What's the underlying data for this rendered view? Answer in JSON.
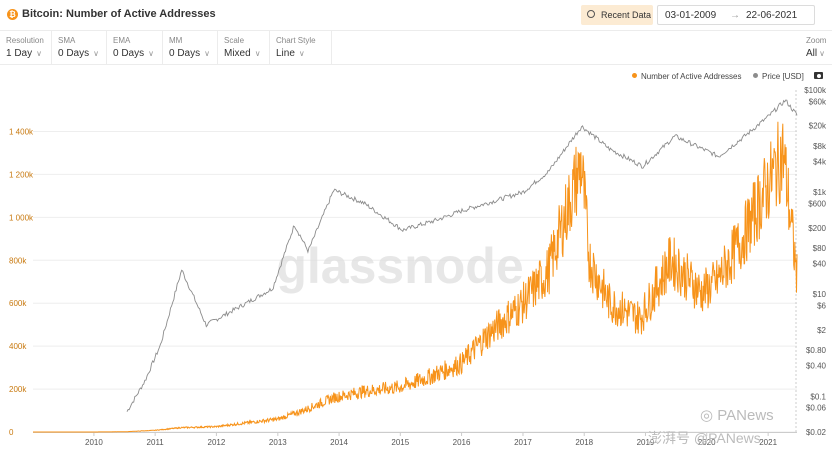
{
  "header": {
    "title": "Bitcoin: Number of Active Addresses",
    "recent_button": "Recent Data",
    "date_start": "03-01-2009",
    "date_arrow": "→",
    "date_end": "22-06-2021"
  },
  "controls": [
    {
      "label": "Resolution",
      "value": "1 Day"
    },
    {
      "label": "SMA",
      "value": "0 Days"
    },
    {
      "label": "EMA",
      "value": "0 Days"
    },
    {
      "label": "MM",
      "value": "0 Days"
    },
    {
      "label": "Scale",
      "value": "Mixed"
    },
    {
      "label": "Chart Style",
      "value": "Line"
    }
  ],
  "zoom": {
    "label": "Zoom",
    "value": "All"
  },
  "watermark": {
    "logo": "glassnode",
    "source": "PANews",
    "source_prefix": "澎湃号"
  },
  "colors": {
    "addresses": "#f7931a",
    "price": "#8c8c8c",
    "axis_left": "#c8790f",
    "grid": "#eeeeee"
  },
  "icons": {
    "title": "bitcoin-icon",
    "recent": "clock-icon",
    "camera": "camera-icon"
  },
  "chart_data": {
    "type": "line",
    "grid": true,
    "legend_position": "top-right",
    "x_ticks": [
      "2010",
      "2011",
      "2012",
      "2013",
      "2014",
      "2015",
      "2016",
      "2017",
      "2018",
      "2019",
      "2020",
      "2021"
    ],
    "y_left": {
      "scale": "linear",
      "range": [
        0,
        1500000
      ],
      "ticks": [
        "0",
        "200k",
        "400k",
        "600k",
        "800k",
        "1 000k",
        "1 200k",
        "1 400k"
      ]
    },
    "y_right": {
      "scale": "log",
      "range": [
        0.02,
        100000
      ],
      "ticks": [
        "$0.02",
        "$0.06",
        "$0.1",
        "$0.40",
        "$0.80",
        "$2",
        "$6",
        "$10",
        "$40",
        "$80",
        "$200",
        "$600",
        "$1k",
        "$4k",
        "$8k",
        "$20k",
        "$60k",
        "$100k"
      ]
    },
    "series": [
      {
        "name": "Number of Active Addresses",
        "axis": "left",
        "points": [
          [
            "2009-01-03",
            0
          ],
          [
            "2010-01-01",
            100
          ],
          [
            "2010-07-01",
            1000
          ],
          [
            "2011-01-01",
            8000
          ],
          [
            "2011-06-01",
            20000
          ],
          [
            "2012-01-01",
            25000
          ],
          [
            "2012-06-01",
            40000
          ],
          [
            "2013-01-01",
            60000
          ],
          [
            "2013-06-01",
            100000
          ],
          [
            "2013-12-01",
            160000
          ],
          [
            "2014-06-01",
            190000
          ],
          [
            "2015-01-01",
            210000
          ],
          [
            "2015-06-01",
            250000
          ],
          [
            "2016-01-01",
            320000
          ],
          [
            "2016-06-01",
            450000
          ],
          [
            "2017-01-01",
            600000
          ],
          [
            "2017-06-01",
            750000
          ],
          [
            "2017-12-15",
            1250000
          ],
          [
            "2018-02-01",
            800000
          ],
          [
            "2018-06-01",
            600000
          ],
          [
            "2018-12-01",
            530000
          ],
          [
            "2019-06-01",
            800000
          ],
          [
            "2019-12-01",
            650000
          ],
          [
            "2020-03-01",
            700000
          ],
          [
            "2020-08-01",
            900000
          ],
          [
            "2021-01-01",
            1150000
          ],
          [
            "2021-04-01",
            1300000
          ],
          [
            "2021-06-22",
            720000
          ]
        ]
      },
      {
        "name": "Price [USD]",
        "axis": "right",
        "points": [
          [
            "2010-07-17",
            0.05
          ],
          [
            "2010-11-01",
            0.2
          ],
          [
            "2011-02-01",
            1
          ],
          [
            "2011-06-08",
            30
          ],
          [
            "2011-11-01",
            2.5
          ],
          [
            "2012-06-01",
            6
          ],
          [
            "2012-12-01",
            13
          ],
          [
            "2013-04-10",
            230
          ],
          [
            "2013-07-01",
            70
          ],
          [
            "2013-12-01",
            1100
          ],
          [
            "2014-06-01",
            600
          ],
          [
            "2015-01-15",
            180
          ],
          [
            "2015-08-01",
            280
          ],
          [
            "2016-01-01",
            430
          ],
          [
            "2016-07-01",
            650
          ],
          [
            "2017-01-01",
            1000
          ],
          [
            "2017-06-01",
            2500
          ],
          [
            "2017-12-17",
            19500
          ],
          [
            "2018-06-01",
            7000
          ],
          [
            "2018-12-15",
            3200
          ],
          [
            "2019-06-26",
            12500
          ],
          [
            "2020-03-12",
            5000
          ],
          [
            "2020-08-01",
            11500
          ],
          [
            "2021-01-01",
            30000
          ],
          [
            "2021-04-14",
            63000
          ],
          [
            "2021-06-22",
            32000
          ]
        ]
      }
    ]
  }
}
